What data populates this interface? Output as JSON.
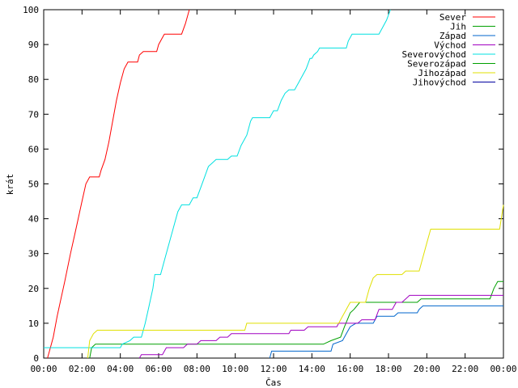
{
  "chart_data": {
    "type": "line",
    "title": "",
    "xlabel": "Čas",
    "ylabel": "krát",
    "xlim": [
      0,
      24
    ],
    "ylim": [
      0,
      100
    ],
    "xticks": [
      0,
      2,
      4,
      6,
      8,
      10,
      12,
      14,
      16,
      18,
      20,
      22,
      24
    ],
    "xtick_labels": [
      "00:00",
      "02:00",
      "04:00",
      "06:00",
      "08:00",
      "10:00",
      "12:00",
      "14:00",
      "16:00",
      "18:00",
      "20:00",
      "22:00",
      "00:00"
    ],
    "yticks": [
      0,
      10,
      20,
      30,
      40,
      50,
      60,
      70,
      80,
      90,
      100
    ],
    "ytick_labels": [
      "0",
      "10",
      "20",
      "30",
      "40",
      "50",
      "60",
      "70",
      "80",
      "90",
      "100"
    ],
    "grid": false,
    "legend_position": "top-right",
    "series": [
      {
        "name": "Sever",
        "color": "#ff0000",
        "points": [
          [
            0.2,
            0
          ],
          [
            0.3,
            2
          ],
          [
            0.5,
            6
          ],
          [
            0.7,
            12
          ],
          [
            0.9,
            17
          ],
          [
            1.1,
            22
          ],
          [
            1.4,
            30
          ],
          [
            1.6,
            35
          ],
          [
            1.8,
            40
          ],
          [
            2.0,
            45
          ],
          [
            2.2,
            50
          ],
          [
            2.4,
            52
          ],
          [
            2.9,
            52
          ],
          [
            3.0,
            54
          ],
          [
            3.2,
            57
          ],
          [
            3.4,
            62
          ],
          [
            3.6,
            68
          ],
          [
            3.8,
            74
          ],
          [
            4.0,
            79
          ],
          [
            4.2,
            83
          ],
          [
            4.4,
            85
          ],
          [
            4.9,
            85
          ],
          [
            5.0,
            87
          ],
          [
            5.2,
            88
          ],
          [
            5.9,
            88
          ],
          [
            6.0,
            90
          ],
          [
            6.2,
            92
          ],
          [
            6.3,
            93
          ],
          [
            7.2,
            93
          ],
          [
            7.4,
            96
          ],
          [
            7.6,
            100
          ]
        ]
      },
      {
        "name": "Jih",
        "color": "#00a000",
        "points": [
          [
            2.4,
            0
          ],
          [
            2.5,
            3
          ],
          [
            2.7,
            4
          ],
          [
            14.6,
            4
          ],
          [
            15.0,
            5
          ],
          [
            15.5,
            6
          ],
          [
            15.7,
            9
          ],
          [
            16.0,
            13
          ],
          [
            16.2,
            14
          ],
          [
            16.5,
            16
          ],
          [
            19.5,
            16
          ],
          [
            19.7,
            17
          ],
          [
            23.3,
            17
          ],
          [
            23.5,
            20
          ],
          [
            23.7,
            22
          ],
          [
            24.0,
            22
          ]
        ]
      },
      {
        "name": "Západ",
        "color": "#0066cc",
        "points": [
          [
            11.8,
            0
          ],
          [
            11.9,
            2
          ],
          [
            15.0,
            2
          ],
          [
            15.1,
            4
          ],
          [
            15.6,
            5
          ],
          [
            15.8,
            7
          ],
          [
            16.0,
            9
          ],
          [
            16.3,
            10
          ],
          [
            17.2,
            10
          ],
          [
            17.4,
            12
          ],
          [
            18.3,
            12
          ],
          [
            18.5,
            13
          ],
          [
            19.5,
            13
          ],
          [
            19.6,
            14
          ],
          [
            19.8,
            15
          ],
          [
            24.0,
            15
          ]
        ]
      },
      {
        "name": "Východ",
        "color": "#a000c0",
        "points": [
          [
            5.0,
            0
          ],
          [
            5.1,
            1
          ],
          [
            6.2,
            1
          ],
          [
            6.4,
            3
          ],
          [
            7.3,
            3
          ],
          [
            7.5,
            4
          ],
          [
            8.0,
            4
          ],
          [
            8.2,
            5
          ],
          [
            9.0,
            5
          ],
          [
            9.2,
            6
          ],
          [
            9.6,
            6
          ],
          [
            9.8,
            7
          ],
          [
            12.8,
            7
          ],
          [
            12.9,
            8
          ],
          [
            13.6,
            8
          ],
          [
            13.8,
            9
          ],
          [
            15.3,
            9
          ],
          [
            15.4,
            10
          ],
          [
            16.4,
            10
          ],
          [
            16.6,
            11
          ],
          [
            17.3,
            11
          ],
          [
            17.5,
            14
          ],
          [
            18.2,
            14
          ],
          [
            18.4,
            16
          ],
          [
            18.7,
            16
          ],
          [
            18.9,
            17
          ],
          [
            19.1,
            18
          ],
          [
            24.0,
            18
          ]
        ]
      },
      {
        "name": "Severovýchod",
        "color": "#00e0e0",
        "points": [
          [
            0.0,
            3
          ],
          [
            4.0,
            3
          ],
          [
            4.1,
            4
          ],
          [
            4.5,
            5
          ],
          [
            4.7,
            6
          ],
          [
            5.1,
            6
          ],
          [
            5.3,
            10
          ],
          [
            5.5,
            15
          ],
          [
            5.7,
            20
          ],
          [
            5.8,
            24
          ],
          [
            6.1,
            24
          ],
          [
            6.3,
            28
          ],
          [
            6.5,
            32
          ],
          [
            6.7,
            36
          ],
          [
            6.9,
            40
          ],
          [
            7.0,
            42
          ],
          [
            7.2,
            44
          ],
          [
            7.6,
            44
          ],
          [
            7.8,
            46
          ],
          [
            8.0,
            46
          ],
          [
            8.2,
            49
          ],
          [
            8.4,
            52
          ],
          [
            8.6,
            55
          ],
          [
            8.8,
            56
          ],
          [
            9.0,
            57
          ],
          [
            9.6,
            57
          ],
          [
            9.8,
            58
          ],
          [
            10.1,
            58
          ],
          [
            10.3,
            61
          ],
          [
            10.6,
            64
          ],
          [
            10.8,
            68
          ],
          [
            10.9,
            69
          ],
          [
            11.8,
            69
          ],
          [
            12.0,
            71
          ],
          [
            12.2,
            71
          ],
          [
            12.4,
            74
          ],
          [
            12.6,
            76
          ],
          [
            12.8,
            77
          ],
          [
            13.1,
            77
          ],
          [
            13.3,
            79
          ],
          [
            13.5,
            81
          ],
          [
            13.7,
            83
          ],
          [
            13.9,
            86
          ],
          [
            14.0,
            86
          ],
          [
            14.1,
            87
          ],
          [
            14.3,
            88
          ],
          [
            14.4,
            89
          ],
          [
            15.8,
            89
          ],
          [
            15.9,
            91
          ],
          [
            16.1,
            93
          ],
          [
            17.5,
            93
          ],
          [
            17.7,
            95
          ],
          [
            17.9,
            97
          ],
          [
            18.1,
            100
          ]
        ]
      },
      {
        "name": "Severozápad",
        "color": "#00a000",
        "points": []
      },
      {
        "name": "Jihozápad",
        "color": "#e0e000",
        "points": [
          [
            2.3,
            0
          ],
          [
            2.4,
            5
          ],
          [
            2.6,
            7
          ],
          [
            2.8,
            8
          ],
          [
            10.5,
            8
          ],
          [
            10.6,
            10
          ],
          [
            15.4,
            10
          ],
          [
            15.6,
            12
          ],
          [
            15.8,
            14
          ],
          [
            16.0,
            16
          ],
          [
            16.8,
            16
          ],
          [
            17.0,
            20
          ],
          [
            17.2,
            23
          ],
          [
            17.4,
            24
          ],
          [
            18.7,
            24
          ],
          [
            18.9,
            25
          ],
          [
            19.6,
            25
          ],
          [
            19.8,
            29
          ],
          [
            20.0,
            33
          ],
          [
            20.2,
            37
          ],
          [
            23.8,
            37
          ],
          [
            24.0,
            44
          ]
        ]
      },
      {
        "name": "Jihovýchod",
        "color": "#0000a0",
        "points": []
      }
    ]
  }
}
